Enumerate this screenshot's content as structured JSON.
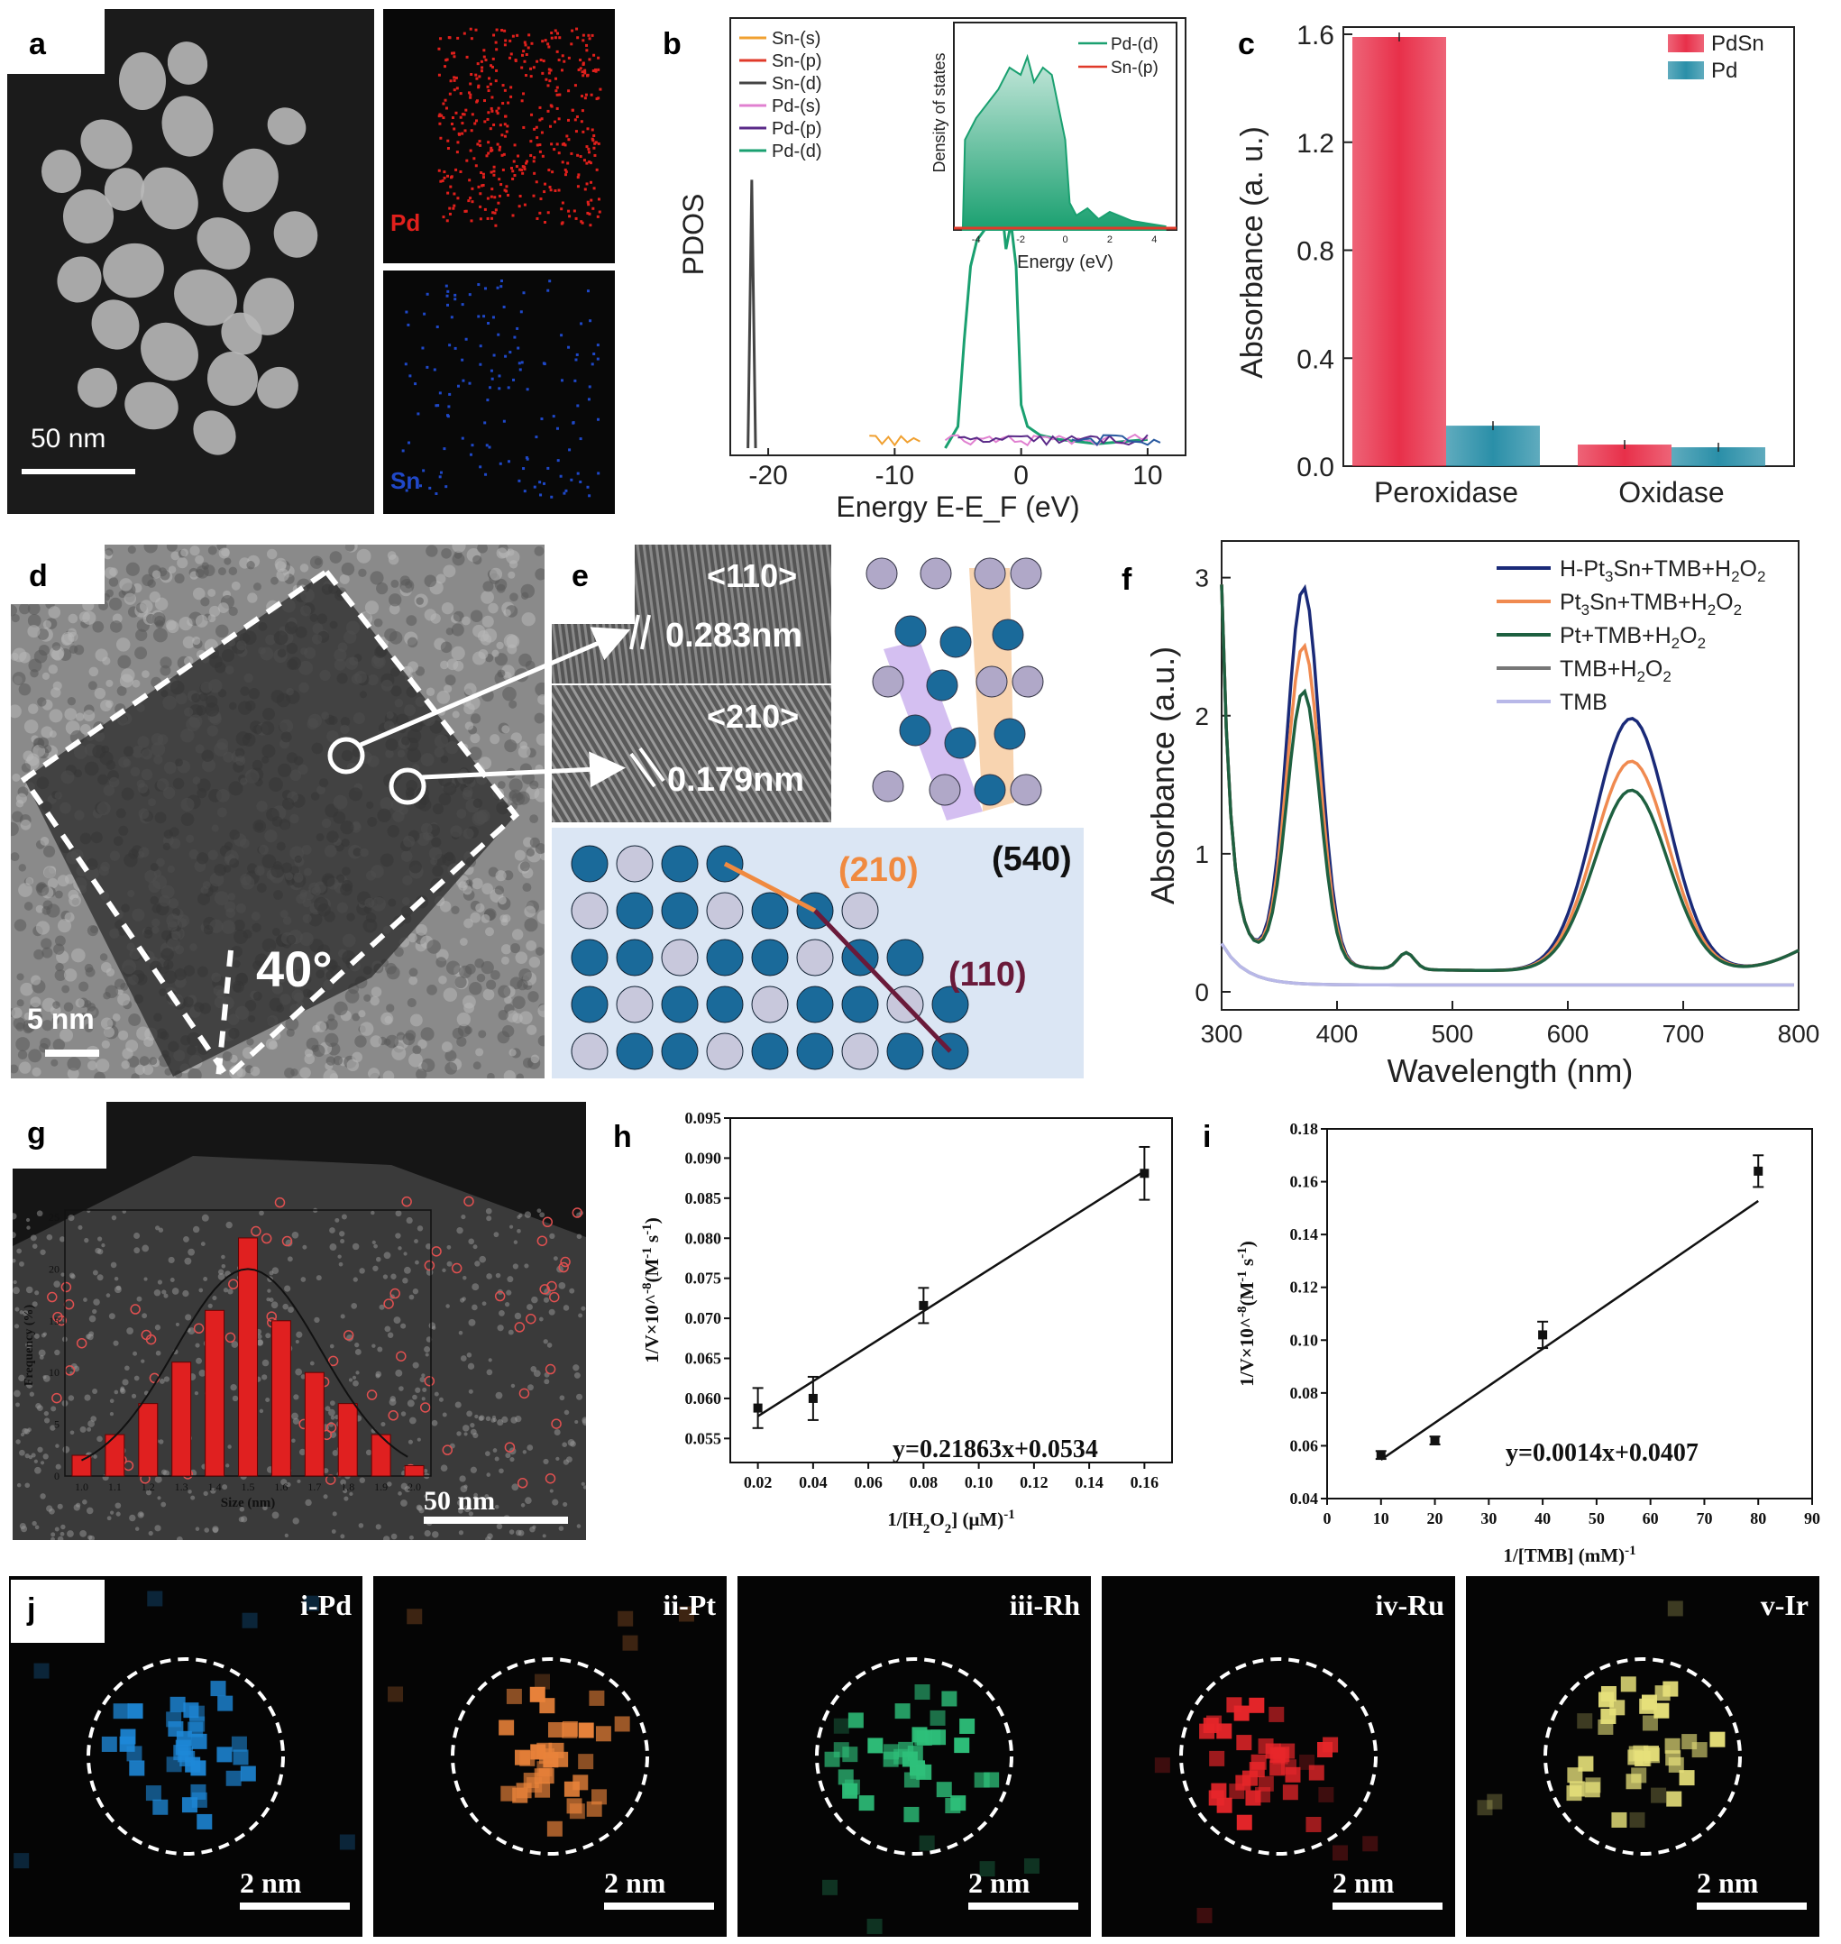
{
  "labels": {
    "a": "a",
    "b": "b",
    "c": "c",
    "d": "d",
    "e": "e",
    "f": "f",
    "g": "g",
    "h": "h",
    "i": "i",
    "j": "j"
  },
  "panel_a": {
    "scale_bar": "50 nm",
    "map_labels": [
      "Pd",
      "Sn"
    ],
    "map_colors": [
      "#e0201c",
      "#1f48c8"
    ]
  },
  "panel_d": {
    "scale_bar": "5 nm",
    "angle": "40°"
  },
  "panel_e": {
    "dir1": "<110>",
    "d1": "0.283nm",
    "dir2": "<210>",
    "d2": "0.179nm",
    "facet_main": "(540)",
    "facet_a": "(210)",
    "facet_b": "(110)"
  },
  "panel_j": {
    "scale": "2 nm",
    "maps": [
      {
        "label": "i-Pd",
        "color": "#1e88d8"
      },
      {
        "label": "ii-Pt",
        "color": "#e8823a"
      },
      {
        "label": "iii-Rh",
        "color": "#2ec07a"
      },
      {
        "label": "iv-Ru",
        "color": "#e8262a"
      },
      {
        "label": "v-Ir",
        "color": "#e6e07a"
      }
    ]
  },
  "chart_data": [
    {
      "id": "b",
      "type": "line",
      "xlabel": "Energy E-E_F (eV)",
      "ylabel": "PDOS",
      "xticks": [
        -20,
        -10,
        0,
        10
      ],
      "xlim": [
        -23,
        13
      ],
      "series": [
        {
          "name": "Sn-(s)",
          "color": "#f0a030"
        },
        {
          "name": "Sn-(p)",
          "color": "#e03a2a"
        },
        {
          "name": "Sn-(d)",
          "color": "#444444",
          "points": [
            [
              -21.6,
              0
            ],
            [
              -21.3,
              0.62
            ],
            [
              -21.0,
              0
            ]
          ]
        },
        {
          "name": "Pd-(s)",
          "color": "#e080d0"
        },
        {
          "name": "Pd-(p)",
          "color": "#5a2a88"
        },
        {
          "name": "Pd-(d)",
          "color": "#1aa070",
          "points": [
            [
              -6,
              0
            ],
            [
              -5,
              0.05
            ],
            [
              -4.5,
              0.25
            ],
            [
              -4,
              0.42
            ],
            [
              -3.5,
              0.48
            ],
            [
              -3,
              0.5
            ],
            [
              -2.5,
              0.52
            ],
            [
              -2,
              0.53
            ],
            [
              -1.5,
              0.55
            ],
            [
              -1.2,
              0.46
            ],
            [
              -0.8,
              0.52
            ],
            [
              -0.4,
              0.42
            ],
            [
              0,
              0.1
            ],
            [
              0.5,
              0.05
            ],
            [
              1.5,
              0.03
            ],
            [
              3,
              0.02
            ],
            [
              6,
              0.01
            ],
            [
              10,
              0.02
            ]
          ]
        }
      ],
      "inset": {
        "xlabel": "Energy (eV)",
        "ylabel": "Density of states",
        "xticks": [
          -4,
          -2,
          0,
          2,
          4
        ],
        "legend": [
          {
            "name": "Pd-(d)",
            "color": "#1aa070"
          },
          {
            "name": "Sn-(p)",
            "color": "#e03a2a"
          }
        ]
      }
    },
    {
      "id": "c",
      "type": "bar",
      "categories": [
        "Peroxidase",
        "Oxidase"
      ],
      "ylabel": "Absorbance (a. u.)",
      "ylim": [
        0,
        1.6
      ],
      "yticks": [
        "0.0",
        "0.4",
        "0.8",
        "1.2",
        "1.6"
      ],
      "series": [
        {
          "name": "PdSn",
          "values": [
            1.59,
            0.08
          ],
          "color": "#e8304a"
        },
        {
          "name": "Pd",
          "values": [
            0.15,
            0.07
          ],
          "color": "#2a8fa8"
        }
      ]
    },
    {
      "id": "f",
      "type": "line",
      "xlabel": "Wavelength (nm)",
      "ylabel": "Absorbance (a.u.)",
      "xlim": [
        300,
        800
      ],
      "ylim": [
        0,
        3.2
      ],
      "xticks": [
        300,
        400,
        500,
        600,
        700,
        800
      ],
      "yticks": [
        0,
        1,
        2,
        3
      ],
      "series": [
        {
          "name": "H-Pt3Sn+TMB+H2O2",
          "color": "#1a2a78",
          "peak1": 2.72,
          "peak2": 1.83
        },
        {
          "name": "Pt3Sn+TMB+H2O2",
          "color": "#f08a50",
          "peak1": 2.3,
          "peak2": 1.52
        },
        {
          "name": "Pt+TMB+H2O2",
          "color": "#1e6040",
          "peak1": 1.97,
          "peak2": 1.31
        },
        {
          "name": "TMB+H2O2",
          "color": "#777777"
        },
        {
          "name": "TMB",
          "color": "#b8b8e8"
        }
      ],
      "legend_display": [
        {
          "main": "H-Pt",
          "sub1": "3",
          "mid": "Sn+TMB+H",
          "sub2": "2",
          "end": "O",
          "sub3": "2"
        },
        {
          "main": "Pt",
          "sub1": "3",
          "mid": "Sn+TMB+H",
          "sub2": "2",
          "end": "O",
          "sub3": "2"
        },
        {
          "main": "Pt+TMB+H",
          "sub1": "2",
          "mid": "O",
          "sub2": "2",
          "end": "",
          "sub3": ""
        },
        {
          "main": "TMB+H",
          "sub1": "2",
          "mid": "O",
          "sub2": "2",
          "end": "",
          "sub3": ""
        },
        {
          "main": "TMB",
          "sub1": "",
          "mid": "",
          "sub2": "",
          "end": "",
          "sub3": ""
        }
      ]
    },
    {
      "id": "g",
      "type": "bar",
      "xlabel": "Size (nm)",
      "ylabel": "Frequency (%)",
      "categories": [
        "1.0",
        "1.1",
        "1.2",
        "1.3",
        "1.4",
        "1.5",
        "1.6",
        "1.7",
        "1.8",
        "1.9",
        "2.0"
      ],
      "values": [
        2,
        4,
        7,
        11,
        16,
        23,
        15,
        10,
        7,
        4,
        1
      ],
      "ylim": [
        0,
        25
      ],
      "yticks": [
        0,
        5,
        10,
        15,
        20,
        25
      ],
      "scale_bar": "50 nm"
    },
    {
      "id": "h",
      "type": "scatter",
      "xlabel": "1/[H2O2] (μM)-1",
      "ylabel": "1/V×10^-8(M-1 s-1)",
      "x": [
        0.02,
        0.04,
        0.08,
        0.16
      ],
      "y": [
        0.0588,
        0.06,
        0.0716,
        0.0881
      ],
      "err": [
        0.0025,
        0.0027,
        0.0022,
        0.0033
      ],
      "fit": {
        "slope": 0.21863,
        "intercept": 0.0534
      },
      "equation": "y=0.21863x+0.0534",
      "xlim": [
        0.01,
        0.17
      ],
      "ylim": [
        0.052,
        0.095
      ],
      "xticks": [
        "0.02",
        "0.04",
        "0.06",
        "0.08",
        "0.10",
        "0.12",
        "0.14",
        "0.16"
      ],
      "yticks": [
        "0.055",
        "0.060",
        "0.065",
        "0.070",
        "0.075",
        "0.080",
        "0.085",
        "0.090",
        "0.095"
      ]
    },
    {
      "id": "i",
      "type": "scatter",
      "xlabel": "1/[TMB] (mM)-1",
      "ylabel": "1/V×10^-8(M-1 s-1)",
      "x": [
        10,
        20,
        40,
        80
      ],
      "y": [
        0.0565,
        0.062,
        0.102,
        0.164
      ],
      "err": [
        0.0015,
        0.0015,
        0.005,
        0.006
      ],
      "fit": {
        "slope": 0.0014,
        "intercept": 0.0407
      },
      "equation": "y=0.0014x+0.0407",
      "xlim": [
        0,
        90
      ],
      "ylim": [
        0.04,
        0.18
      ],
      "xticks": [
        "0",
        "10",
        "20",
        "30",
        "40",
        "50",
        "60",
        "70",
        "80",
        "90"
      ],
      "yticks": [
        "0.04",
        "0.06",
        "0.08",
        "0.10",
        "0.12",
        "0.14",
        "0.16",
        "0.18"
      ]
    }
  ]
}
